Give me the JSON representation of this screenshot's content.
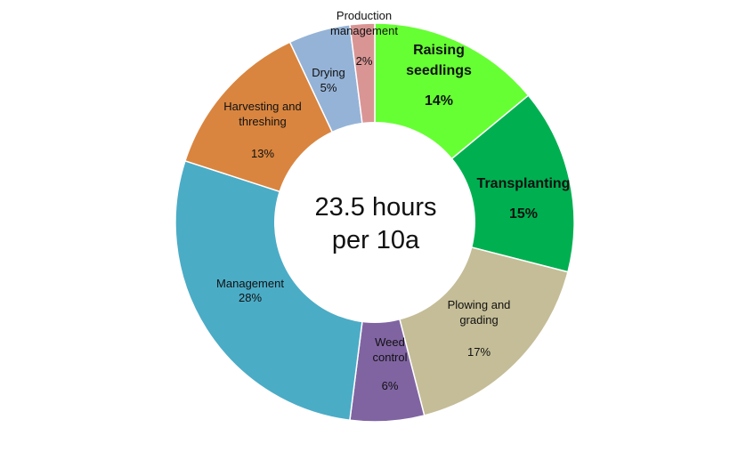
{
  "chart_data": {
    "type": "pie",
    "donut": true,
    "center_text": [
      "23.5 hours",
      "per 10a"
    ],
    "slices": [
      {
        "label": [
          "Raising",
          "seedlings"
        ],
        "value": 14,
        "percent": "14%",
        "color": "#66ff33",
        "emphasis": true
      },
      {
        "label": [
          "Transplanting"
        ],
        "value": 15,
        "percent": "15%",
        "color": "#00b050",
        "emphasis": true
      },
      {
        "label": [
          "Plowing and",
          "grading"
        ],
        "value": 17,
        "percent": "17%",
        "color": "#c4bd97",
        "emphasis": false
      },
      {
        "label": [
          "Weed",
          "control"
        ],
        "value": 6,
        "percent": "6%",
        "color": "#8064a2",
        "emphasis": false
      },
      {
        "label": [
          "Management"
        ],
        "value": 28,
        "percent": "28%",
        "color": "#4bacc6",
        "emphasis": false
      },
      {
        "label": [
          "Harvesting and",
          "threshing"
        ],
        "value": 13,
        "percent": "13%",
        "color": "#d9853f",
        "emphasis": false
      },
      {
        "label": [
          "Drying"
        ],
        "value": 5,
        "percent": "5%",
        "color": "#95b3d7",
        "emphasis": false
      },
      {
        "label": [
          "Production",
          "management"
        ],
        "value": 2,
        "percent": "2%",
        "color": "#d99594",
        "emphasis": false
      }
    ]
  }
}
